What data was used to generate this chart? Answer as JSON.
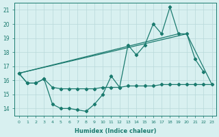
{
  "x_all": [
    0,
    1,
    2,
    3,
    4,
    5,
    6,
    7,
    8,
    9,
    10,
    11,
    12,
    13,
    14,
    15,
    16,
    17,
    18,
    19,
    20,
    21,
    22,
    23
  ],
  "line_zigzag": [
    16.5,
    15.8,
    15.8,
    16.1,
    14.3,
    14.0,
    14.0,
    13.9,
    13.8,
    14.3,
    15.0,
    16.3,
    15.5,
    18.5,
    17.8,
    18.5,
    20.0,
    19.3,
    21.2,
    19.3,
    19.3,
    17.5,
    16.6,
    null
  ],
  "line_flat": [
    16.5,
    15.8,
    15.8,
    16.1,
    15.5,
    15.4,
    15.4,
    15.4,
    15.4,
    15.4,
    15.5,
    15.5,
    15.5,
    15.6,
    15.6,
    15.6,
    15.6,
    15.7,
    15.7,
    15.7,
    15.7,
    15.7,
    15.7,
    15.7
  ],
  "line_trend_upper": [
    16.5,
    null,
    null,
    null,
    null,
    null,
    null,
    null,
    null,
    null,
    null,
    null,
    null,
    null,
    null,
    null,
    null,
    null,
    null,
    19.3,
    null,
    null,
    null,
    15.7
  ],
  "line_trend_lower": [
    16.5,
    null,
    null,
    null,
    null,
    null,
    null,
    null,
    null,
    null,
    null,
    null,
    null,
    null,
    null,
    null,
    null,
    null,
    null,
    null,
    19.3,
    null,
    null,
    15.7
  ],
  "line_color": "#1a7a6e",
  "bg_color": "#d8f0f0",
  "grid_color": "#b8d8da",
  "xlabel": "Humidex (Indice chaleur)",
  "xlim": [
    -0.5,
    23.5
  ],
  "ylim": [
    13.5,
    21.5
  ],
  "yticks": [
    14,
    15,
    16,
    17,
    18,
    19,
    20,
    21
  ],
  "xticks": [
    0,
    1,
    2,
    3,
    4,
    5,
    6,
    7,
    8,
    9,
    10,
    11,
    12,
    13,
    14,
    15,
    16,
    17,
    18,
    19,
    20,
    21,
    22,
    23
  ]
}
